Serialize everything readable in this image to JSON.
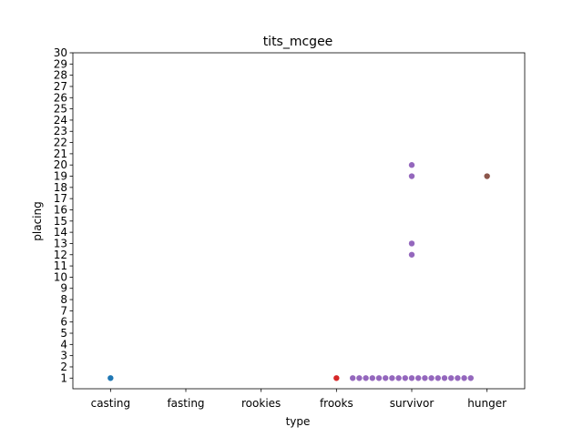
{
  "chart_data": {
    "type": "scatter",
    "title": "tits_mcgee",
    "xlabel": "type",
    "ylabel": "placing",
    "categories": [
      "casting",
      "fasting",
      "rookies",
      "frooks",
      "survivor",
      "hunger"
    ],
    "ylim": [
      0,
      30
    ],
    "yticks": [
      1,
      2,
      3,
      4,
      5,
      6,
      7,
      8,
      9,
      10,
      11,
      12,
      13,
      14,
      15,
      16,
      17,
      18,
      19,
      20,
      21,
      22,
      23,
      24,
      25,
      26,
      27,
      28,
      29,
      30
    ],
    "grid": false,
    "legend": "none",
    "category_colors": {
      "casting": "#1f77b4",
      "fasting": "#ff7f0e",
      "rookies": "#2ca02c",
      "frooks": "#d62728",
      "survivor": "#9467bd",
      "hunger": "#8c564b"
    },
    "points": {
      "casting": [
        1
      ],
      "fasting": [],
      "rookies": [],
      "frooks": [
        1
      ],
      "survivor": [
        1,
        1,
        1,
        1,
        1,
        1,
        1,
        1,
        1,
        1,
        1,
        1,
        1,
        1,
        1,
        1,
        1,
        1,
        1,
        12,
        13,
        19,
        20
      ],
      "hunger": [
        19
      ]
    }
  }
}
